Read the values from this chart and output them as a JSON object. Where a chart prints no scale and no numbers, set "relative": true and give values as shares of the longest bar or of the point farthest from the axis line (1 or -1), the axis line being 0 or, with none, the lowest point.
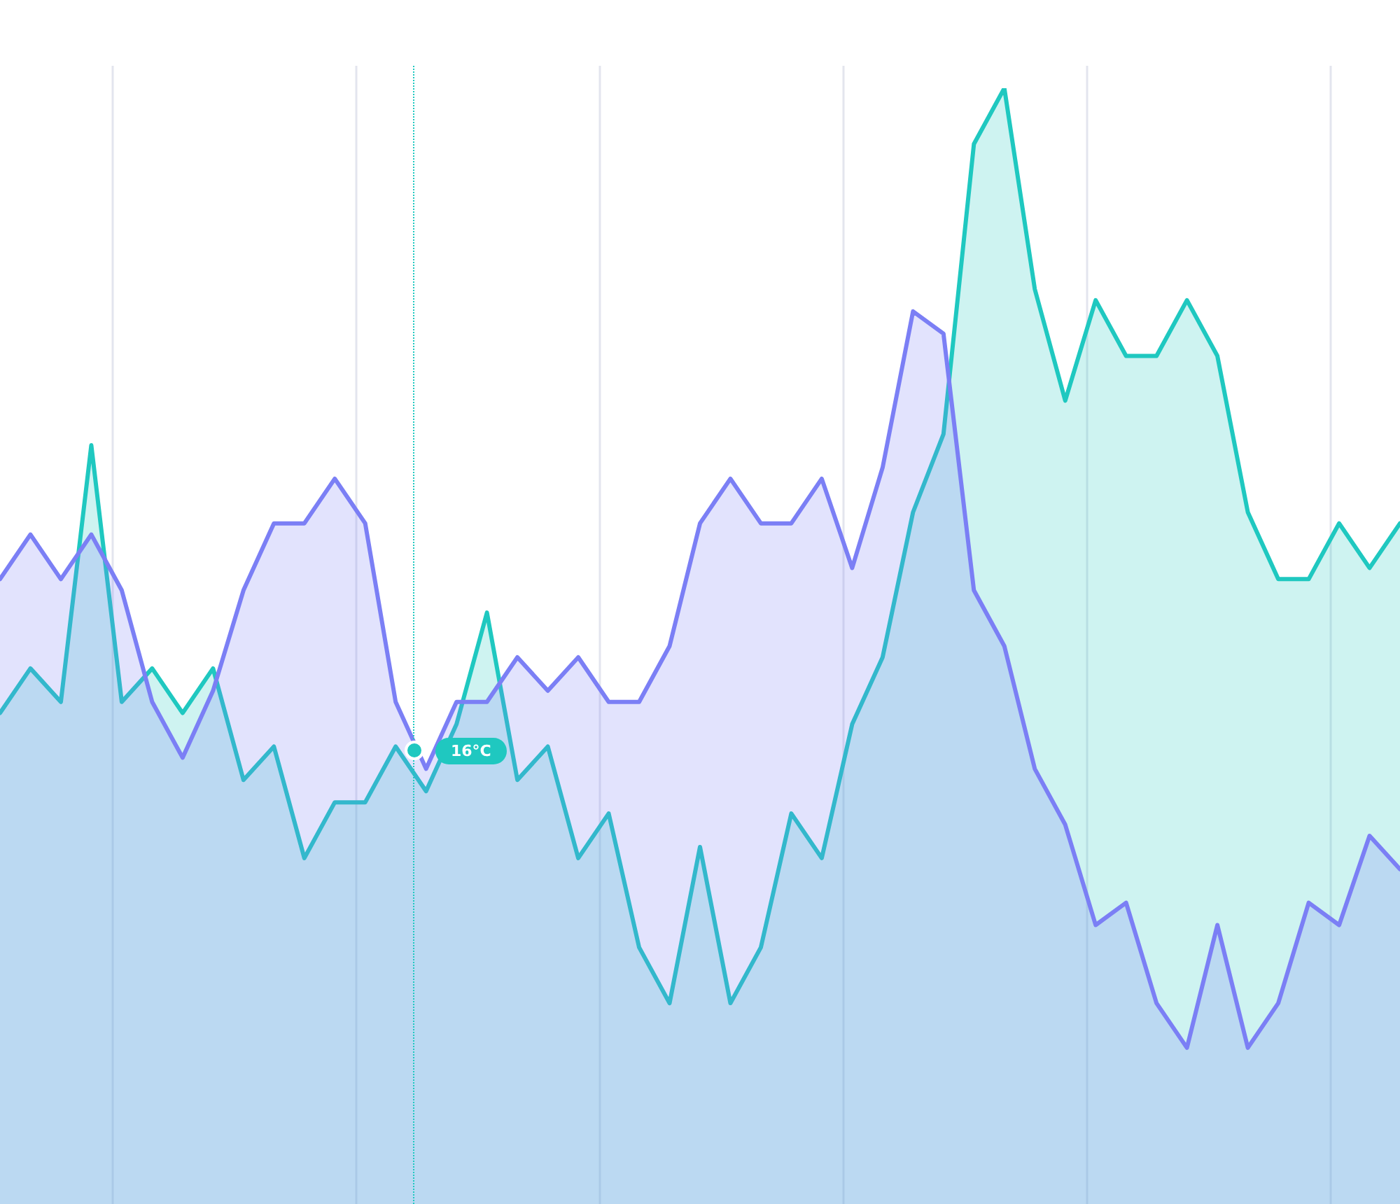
{
  "chart_data": {
    "type": "area",
    "relative": true,
    "grid": "x",
    "legend": false,
    "marker": "none",
    "line_style": "solid",
    "categories": [
      null,
      null,
      null,
      null,
      null,
      null,
      null,
      null,
      null,
      null,
      null,
      null,
      null,
      null,
      null,
      null,
      null,
      null,
      null,
      null,
      null,
      null,
      null,
      null,
      null,
      null,
      null,
      null,
      null,
      null,
      null,
      null,
      null,
      null,
      null,
      null,
      null,
      null,
      null,
      null,
      null,
      null,
      null,
      null,
      null,
      null,
      null
    ],
    "series": [
      {
        "color": "#7b7ff5",
        "values": [
          0.56,
          0.6,
          0.56,
          0.6,
          0.55,
          0.45,
          0.4,
          0.46,
          0.55,
          0.61,
          0.61,
          0.65,
          0.61,
          0.45,
          0.39,
          0.45,
          0.45,
          0.49,
          0.46,
          0.49,
          0.45,
          0.45,
          0.5,
          0.61,
          0.65,
          0.61,
          0.61,
          0.65,
          0.57,
          0.66,
          0.8,
          0.78,
          0.55,
          0.5,
          0.39,
          0.34,
          0.25,
          0.27,
          0.18,
          0.14,
          0.25,
          0.14,
          0.18,
          0.27,
          0.25,
          0.33,
          0.3
        ]
      },
      {
        "color": "#1fc8c0",
        "values": [
          0.44,
          0.48,
          0.45,
          0.68,
          0.45,
          0.48,
          0.44,
          0.48,
          0.38,
          0.41,
          0.31,
          0.36,
          0.36,
          0.41,
          0.37,
          0.43,
          0.53,
          0.38,
          0.41,
          0.31,
          0.35,
          0.23,
          0.18,
          0.32,
          0.18,
          0.23,
          0.35,
          0.31,
          0.43,
          0.49,
          0.62,
          0.69,
          0.95,
          1,
          0.82,
          0.72,
          0.81,
          0.76,
          0.76,
          0.81,
          0.76,
          0.62,
          0.56,
          0.56,
          0.61,
          0.57,
          0.61
        ]
      }
    ],
    "annotations": [
      "16°C"
    ]
  }
}
